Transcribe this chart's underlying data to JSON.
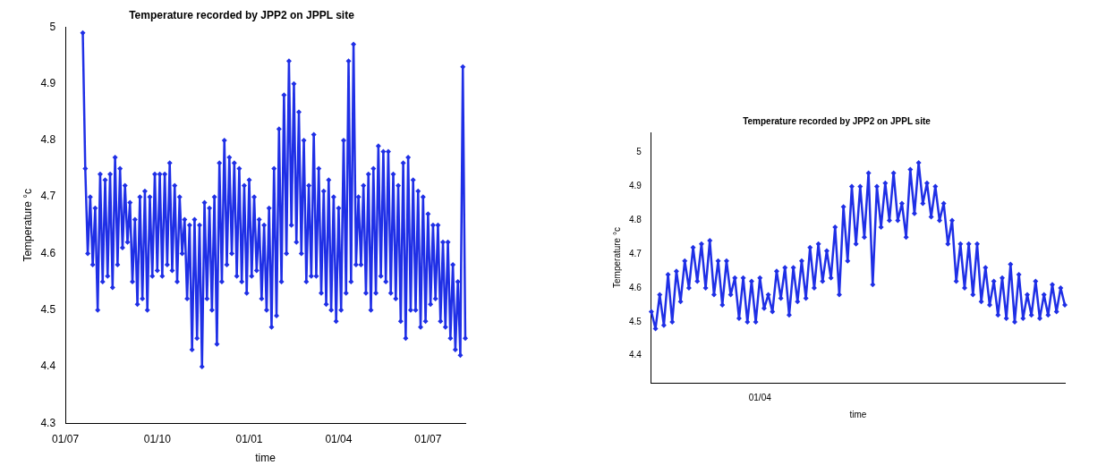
{
  "chart_data": [
    {
      "type": "line",
      "title": "Temperature recorded by JPP2 on JPPL site",
      "xlabel": "time",
      "ylabel": "Temperature °c",
      "marker": "diamond",
      "grid": false,
      "legend": false,
      "categories": [
        "01/07",
        null,
        null,
        null,
        null,
        null,
        null,
        null,
        null,
        null,
        null,
        null,
        null,
        null,
        null,
        null,
        null,
        null,
        null,
        null,
        null,
        null,
        null,
        null,
        null,
        null,
        null,
        null,
        null,
        null,
        null,
        null,
        null,
        null,
        null,
        null,
        null,
        "01/10",
        null,
        null,
        null,
        null,
        null,
        null,
        null,
        null,
        null,
        null,
        null,
        null,
        null,
        null,
        null,
        null,
        null,
        null,
        null,
        null,
        null,
        null,
        null,
        null,
        null,
        null,
        null,
        null,
        null,
        null,
        null,
        null,
        null,
        null,
        null,
        null,
        "01/01",
        null,
        null,
        null,
        null,
        null,
        null,
        null,
        null,
        null,
        null,
        null,
        null,
        null,
        null,
        null,
        null,
        null,
        null,
        null,
        null,
        null,
        null,
        null,
        null,
        null,
        null,
        null,
        null,
        null,
        null,
        null,
        null,
        null,
        null,
        null,
        "01/04",
        null,
        null,
        null,
        null,
        null,
        null,
        null,
        null,
        null,
        null,
        null,
        null,
        null,
        null,
        null,
        null,
        null,
        null,
        null,
        null,
        null,
        null,
        null,
        null,
        null,
        null,
        null,
        null,
        null,
        null,
        null,
        null,
        null,
        null,
        null,
        "01/07",
        null,
        null,
        null,
        null,
        null,
        null,
        null,
        null,
        null,
        null,
        null,
        null,
        null,
        null,
        null
      ],
      "ylim": [
        4.3,
        5
      ],
      "yticks": [
        4.3,
        4.4,
        4.5,
        4.6,
        4.7,
        4.8,
        4.9,
        5
      ],
      "series": [
        {
          "color": "#1f2fe6",
          "values": [
            null,
            null,
            null,
            null,
            null,
            null,
            null,
            4.99,
            4.75,
            4.6,
            4.7,
            4.58,
            4.68,
            4.5,
            4.74,
            4.55,
            4.73,
            4.56,
            4.74,
            4.54,
            4.77,
            4.58,
            4.75,
            4.61,
            4.72,
            4.62,
            4.69,
            4.55,
            4.66,
            4.51,
            4.7,
            4.52,
            4.71,
            4.5,
            4.7,
            4.56,
            4.74,
            4.57,
            4.74,
            4.56,
            4.74,
            4.58,
            4.76,
            4.57,
            4.72,
            4.55,
            4.7,
            4.6,
            4.66,
            4.52,
            4.65,
            4.43,
            4.66,
            4.45,
            4.65,
            4.4,
            4.69,
            4.52,
            4.68,
            4.5,
            4.7,
            4.44,
            4.76,
            4.55,
            4.8,
            4.58,
            4.77,
            4.6,
            4.76,
            4.56,
            4.75,
            4.55,
            4.72,
            4.53,
            4.73,
            4.56,
            4.7,
            4.57,
            4.66,
            4.52,
            4.65,
            4.5,
            4.68,
            4.47,
            4.75,
            4.49,
            4.82,
            4.55,
            4.88,
            4.6,
            4.94,
            4.65,
            4.9,
            4.62,
            4.85,
            4.6,
            4.8,
            4.55,
            4.72,
            4.56,
            4.81,
            4.56,
            4.75,
            4.53,
            4.71,
            4.51,
            4.73,
            4.5,
            4.7,
            4.48,
            4.68,
            4.5,
            4.8,
            4.53,
            4.94,
            4.55,
            4.97,
            4.58,
            4.7,
            4.58,
            4.72,
            4.53,
            4.74,
            4.5,
            4.75,
            4.53,
            4.79,
            4.56,
            4.78,
            4.55,
            4.78,
            4.53,
            4.74,
            4.52,
            4.72,
            4.48,
            4.76,
            4.45,
            4.77,
            4.5,
            4.73,
            4.5,
            4.71,
            4.47,
            4.7,
            4.48,
            4.67,
            4.51,
            4.65,
            4.52,
            4.65,
            4.48,
            4.62,
            4.47,
            4.62,
            4.45,
            4.58,
            4.43,
            4.55,
            4.42,
            4.93,
            4.45
          ]
        }
      ]
    },
    {
      "type": "line",
      "title": "Temperature recorded by JPP2 on JPPL site",
      "xlabel": "time",
      "ylabel": "Temperature °c",
      "marker": "diamond",
      "grid": false,
      "legend": false,
      "categories": [
        null,
        null,
        null,
        null,
        null,
        null,
        null,
        null,
        null,
        null,
        null,
        null,
        null,
        null,
        null,
        null,
        null,
        null,
        null,
        null,
        null,
        null,
        null,
        null,
        null,
        null,
        "01/04",
        null,
        null,
        null,
        null,
        null,
        null,
        null,
        null,
        null,
        null,
        null,
        null,
        null,
        null,
        null,
        null,
        null,
        null,
        null,
        null,
        null,
        null,
        null,
        null,
        null,
        null,
        null,
        null,
        null,
        null,
        null,
        null,
        null,
        null,
        null,
        null,
        null,
        null,
        null,
        null,
        null,
        null,
        null,
        null,
        null,
        null,
        null,
        null,
        null,
        null,
        null,
        null,
        null,
        null,
        null,
        null,
        null,
        null,
        null,
        null,
        null,
        null,
        null,
        null,
        null,
        null,
        null,
        null,
        null,
        null,
        null,
        null,
        null
      ],
      "ylim": [
        4.32,
        5.06
      ],
      "yticks": [
        4.4,
        4.5,
        4.6,
        4.7,
        4.8,
        4.9,
        5
      ],
      "series": [
        {
          "color": "#1f2fe6",
          "values": [
            4.53,
            4.48,
            4.58,
            4.49,
            4.64,
            4.5,
            4.65,
            4.56,
            4.68,
            4.6,
            4.72,
            4.62,
            4.73,
            4.6,
            4.74,
            4.58,
            4.68,
            4.55,
            4.68,
            4.58,
            4.63,
            4.51,
            4.63,
            4.5,
            4.62,
            4.5,
            4.63,
            4.54,
            4.58,
            4.53,
            4.65,
            4.57,
            4.66,
            4.52,
            4.66,
            4.56,
            4.68,
            4.57,
            4.72,
            4.6,
            4.73,
            4.62,
            4.71,
            4.63,
            4.78,
            4.58,
            4.84,
            4.68,
            4.9,
            4.73,
            4.9,
            4.75,
            4.94,
            4.61,
            4.9,
            4.78,
            4.91,
            4.8,
            4.94,
            4.8,
            4.85,
            4.75,
            4.95,
            4.82,
            4.97,
            4.85,
            4.91,
            4.81,
            4.9,
            4.8,
            4.85,
            4.73,
            4.8,
            4.62,
            4.73,
            4.6,
            4.73,
            4.58,
            4.73,
            4.56,
            4.66,
            4.55,
            4.62,
            4.52,
            4.63,
            4.51,
            4.67,
            4.5,
            4.64,
            4.51,
            4.58,
            4.52,
            4.62,
            4.51,
            4.58,
            4.52,
            4.61,
            4.53,
            4.6,
            4.55
          ]
        }
      ]
    }
  ]
}
